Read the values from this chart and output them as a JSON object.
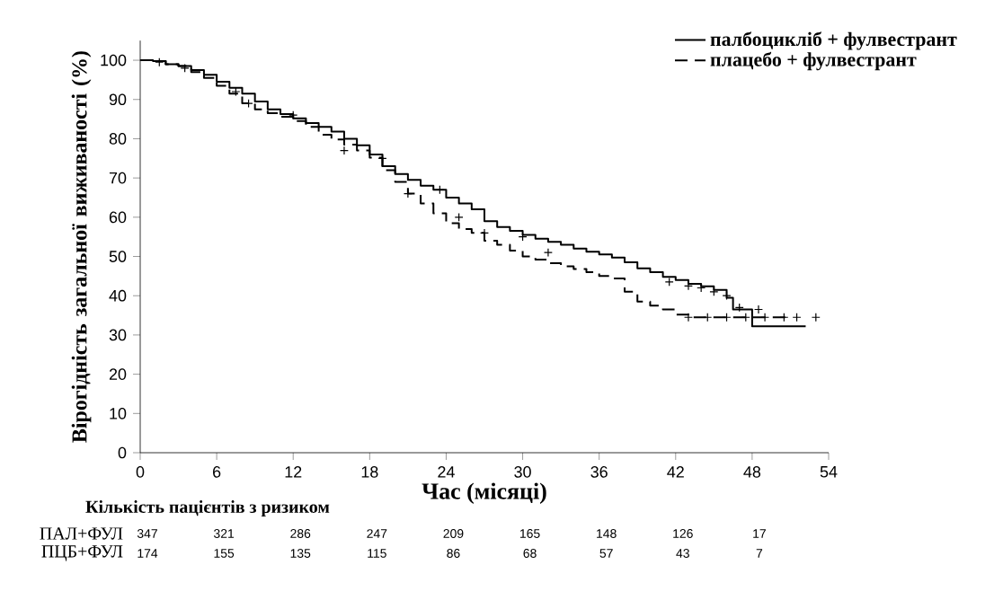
{
  "chart_data": {
    "type": "step",
    "xlabel": "Час (місяці)",
    "ylabel": "Вірогідність загальної виживаності (%)",
    "xlim": [
      0,
      54
    ],
    "xticks": [
      0,
      6,
      12,
      18,
      24,
      30,
      36,
      42,
      48,
      54
    ],
    "ylim": [
      0,
      105
    ],
    "yticks": [
      0,
      10,
      20,
      30,
      40,
      50,
      60,
      70,
      80,
      90,
      100
    ],
    "legend": "top right",
    "marker": "none",
    "series": [
      {
        "name": "палбоцикліб + фулвестрант",
        "color": "#000000",
        "line_style": "solid",
        "x": [
          0,
          1,
          2,
          3,
          4,
          5,
          6,
          7,
          8,
          9,
          10,
          11,
          12,
          13,
          14,
          15,
          16,
          17,
          18,
          19,
          20,
          21,
          22,
          23,
          24,
          25,
          26,
          27,
          28,
          29,
          30,
          31,
          32,
          33,
          34,
          35,
          36,
          37,
          38,
          39,
          40,
          41,
          42,
          43,
          44,
          45,
          46,
          46.5,
          48,
          52.2
        ],
        "values": [
          100,
          99.8,
          99,
          98.5,
          97.5,
          96.3,
          94.5,
          93,
          91.5,
          89.5,
          87.5,
          86.3,
          85.2,
          84,
          83,
          81.8,
          80,
          78.3,
          76,
          73,
          71,
          69.5,
          68,
          67,
          65,
          63.5,
          62,
          59,
          57.5,
          56.5,
          55.5,
          54.5,
          53.7,
          53,
          52,
          51.2,
          50.5,
          49.7,
          48.5,
          47,
          46,
          44.8,
          44,
          43,
          42.4,
          41.5,
          39.5,
          36.5,
          32.2,
          32.2
        ]
      },
      {
        "name": "плацебо + фулвестрант",
        "color": "#000000",
        "line_style": "dashed",
        "x": [
          0,
          1,
          2,
          3,
          4,
          5,
          6,
          7,
          8,
          9,
          10,
          11,
          12,
          13,
          14,
          15,
          16,
          17,
          18,
          19,
          20,
          21,
          22,
          23,
          24,
          25,
          26,
          27,
          28,
          29,
          30,
          31,
          32,
          33,
          34,
          35,
          36,
          37,
          38,
          39,
          40,
          41,
          42,
          43,
          50.6
        ],
        "values": [
          100,
          99.8,
          99,
          98.5,
          97,
          95.5,
          93.5,
          91.5,
          89,
          87.5,
          86.5,
          85.6,
          84.5,
          83,
          81,
          79.8,
          78.5,
          77,
          75.2,
          72,
          69,
          66,
          63.5,
          61,
          58.5,
          57,
          56,
          54,
          53,
          51.5,
          50,
          49.2,
          48.3,
          47.5,
          46.8,
          46,
          45,
          44.4,
          41,
          38.5,
          37.5,
          36.5,
          35.2,
          34.5,
          34.5
        ]
      },
      {
        "type": "scatter",
        "marker": "cross",
        "color": "#000000",
        "x": [
          1.5,
          3.5,
          7.5,
          12,
          19,
          23.5,
          30,
          41.5,
          43,
          44,
          45,
          46,
          47,
          48.5
        ],
        "values": [
          99.5,
          98,
          92,
          86,
          75,
          67,
          55,
          43.5,
          42.5,
          42,
          41,
          40,
          37,
          36.5
        ]
      },
      {
        "type": "scatter",
        "marker": "cross",
        "color": "#000000",
        "x": [
          8.5,
          16,
          21,
          25,
          27,
          32,
          43,
          44.5,
          46,
          47.5,
          49,
          50.5,
          51.5,
          53
        ],
        "values": [
          89,
          77,
          66,
          60,
          56,
          51,
          34.5,
          34.5,
          34.5,
          34.5,
          34.5,
          34.5,
          34.5,
          34.5
        ]
      }
    ],
    "annotations": [
      "Кількість пацієнтів з ризиком",
      "ПАЛ+ФУЛ",
      "347",
      "321",
      "286",
      "247",
      "209",
      "165",
      "148",
      "126",
      "17",
      "ПЦБ+ФУЛ",
      "174",
      "155",
      "135",
      "115",
      "86",
      "68",
      "57",
      "43",
      "7"
    ]
  }
}
